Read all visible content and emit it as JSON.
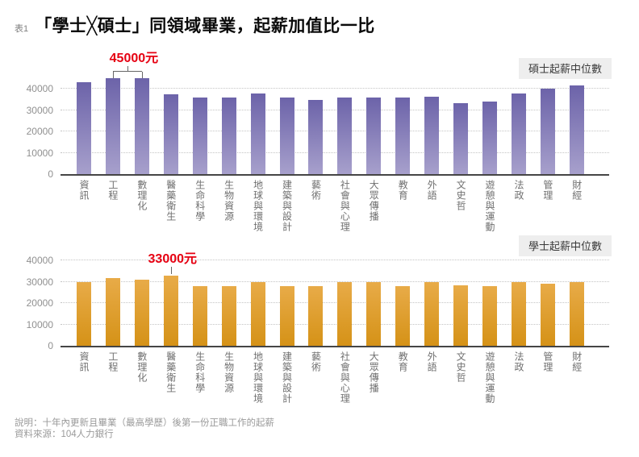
{
  "header": {
    "table_label": "表1",
    "title": "「學士╳碩士」同領域畢業，起薪加值比一比"
  },
  "chart_data": [
    {
      "type": "bar",
      "title": "碩士起薪中位數",
      "categories": [
        "資訊",
        "工程",
        "數理化",
        "醫藥衛生",
        "生命科學",
        "生物資源",
        "地球與環境",
        "建築與設計",
        "藝術",
        "社會與心理",
        "大眾傳播",
        "教育",
        "外語",
        "文史哲",
        "遊憩與運動",
        "法政",
        "管理",
        "財經"
      ],
      "values": [
        43000,
        45000,
        45000,
        37500,
        36000,
        36000,
        38000,
        36000,
        35000,
        36000,
        36000,
        36000,
        36500,
        33500,
        34000,
        38000,
        40000,
        41500
      ],
      "ylim": [
        0,
        50000
      ],
      "yticks": [
        0,
        10000,
        20000,
        30000,
        40000
      ],
      "grid": "dotted-horizontal",
      "legend_position": "top-right",
      "annotation": {
        "text": "45000元",
        "value": 45000,
        "targets": [
          "工程",
          "數理化"
        ],
        "style": "bracket"
      }
    },
    {
      "type": "bar",
      "title": "學士起薪中位數",
      "categories": [
        "資訊",
        "工程",
        "數理化",
        "醫藥衛生",
        "生命科學",
        "生物資源",
        "地球與環境",
        "建築與設計",
        "藝術",
        "社會與心理",
        "大眾傳播",
        "教育",
        "外語",
        "文史哲",
        "遊憩與運動",
        "法政",
        "管理",
        "財經"
      ],
      "values": [
        30000,
        32000,
        31000,
        33000,
        28000,
        28000,
        30000,
        28000,
        28000,
        30000,
        30000,
        28000,
        30000,
        28500,
        28000,
        30000,
        29000,
        30000
      ],
      "ylim": [
        0,
        50000
      ],
      "yticks": [
        0,
        10000,
        20000,
        30000,
        40000
      ],
      "grid": "dotted-horizontal",
      "legend_position": "top-right",
      "annotation": {
        "text": "33000元",
        "value": 33000,
        "targets": [
          "醫藥衛生"
        ],
        "style": "pointer"
      }
    }
  ],
  "colors": {
    "annotation_red": "#e60012",
    "master_bar_top": "#6c63a9",
    "master_bar_bottom": "#a7a0cc",
    "bachelor_bar_top": "#e8ab48",
    "bachelor_bar_bottom": "#d59217",
    "legend_bg": "#eeeeee"
  },
  "footer": {
    "note": "說明：十年內更新且畢業（最高學歷）後第一份正職工作的起薪",
    "source": "資料來源：104人力銀行"
  }
}
